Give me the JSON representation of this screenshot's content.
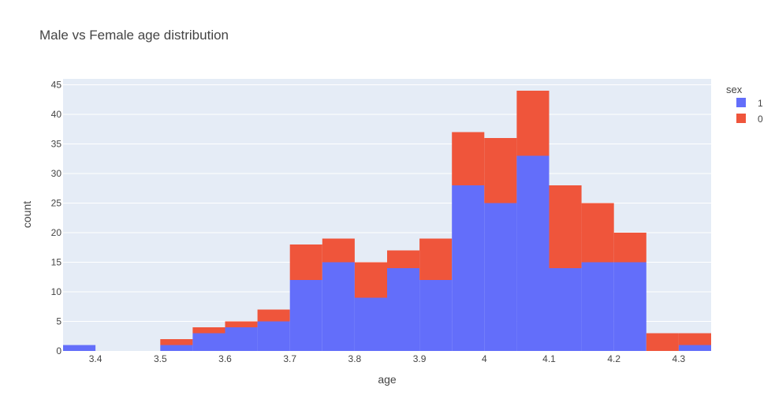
{
  "chart_data": {
    "type": "bar",
    "barmode": "stack",
    "title": "Male vs Female age distribution",
    "xlabel": "age",
    "ylabel": "count",
    "bin_width": 0.05,
    "bin_edges": [
      3.35,
      3.4,
      3.45,
      3.5,
      3.55,
      3.6,
      3.65,
      3.7,
      3.75,
      3.8,
      3.85,
      3.9,
      3.95,
      4.0,
      4.05,
      4.1,
      4.15,
      4.2,
      4.25,
      4.3,
      4.35
    ],
    "xlim": [
      3.35,
      4.35
    ],
    "ylim": [
      0,
      46
    ],
    "x_ticks": [
      3.4,
      3.5,
      3.6,
      3.7,
      3.8,
      3.9,
      4,
      4.1,
      4.2,
      4.3
    ],
    "x_tick_labels": [
      "3.4",
      "3.5",
      "3.6",
      "3.7",
      "3.8",
      "3.9",
      "4",
      "4.1",
      "4.2",
      "4.3"
    ],
    "y_ticks": [
      0,
      5,
      10,
      15,
      20,
      25,
      30,
      35,
      40,
      45
    ],
    "y_tick_labels": [
      "0",
      "5",
      "10",
      "15",
      "20",
      "25",
      "30",
      "35",
      "40",
      "45"
    ],
    "grid": true,
    "legend": {
      "title": "sex",
      "placement": "top-right"
    },
    "series": [
      {
        "name": "1",
        "color": "#636efa",
        "values": [
          1,
          0,
          0,
          1,
          3,
          4,
          5,
          12,
          15,
          9,
          14,
          12,
          28,
          25,
          33,
          14,
          15,
          15,
          0,
          1
        ]
      },
      {
        "name": "0",
        "color": "#ef553b",
        "values": [
          0,
          0,
          0,
          1,
          1,
          1,
          2,
          6,
          4,
          6,
          3,
          7,
          9,
          11,
          11,
          14,
          10,
          5,
          3,
          2
        ]
      }
    ]
  },
  "colors": {
    "plot_background": "#e5ecf6",
    "grid": "#ffffff",
    "text": "#444444"
  }
}
